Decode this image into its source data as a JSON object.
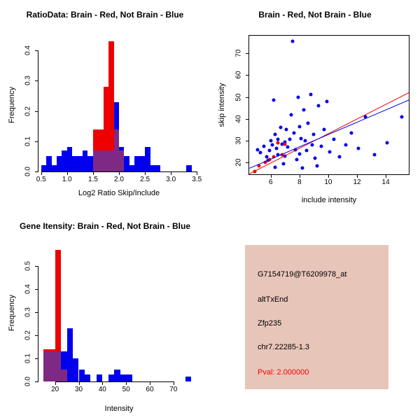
{
  "figure": {
    "bg": "#ffffff",
    "colors": {
      "blue": "#0000EE",
      "red": "#EE0000",
      "overlap": "#7E2A85",
      "axis": "#000000"
    }
  },
  "chart_data": [
    {
      "id": "hist_ratio",
      "type": "bar",
      "subtype": "overlaid-histogram",
      "title": "RatioData: Brain - Red, Not Brain - Blue",
      "xlabel": "Log2 Ratio Skip/Include",
      "ylabel": "Frequency",
      "xlim": [
        0.45,
        3.55
      ],
      "ylim": [
        0,
        0.44
      ],
      "grid": false,
      "xticks": [
        "0.5",
        "1.0",
        "1.5",
        "2.0",
        "2.5",
        "3.0",
        "3.5"
      ],
      "xtick_values": [
        0.5,
        1.0,
        1.5,
        2.0,
        2.5,
        3.0,
        3.5
      ],
      "yticks": [
        "0.0",
        "0.1",
        "0.2",
        "0.3",
        "0.4"
      ],
      "ytick_values": [
        0,
        0.1,
        0.2,
        0.3,
        0.4
      ],
      "bin_width": 0.1,
      "series_legend": [
        {
          "name": "Brain",
          "color_key": "red"
        },
        {
          "name": "Not Brain",
          "color_key": "blue"
        }
      ],
      "bins": [
        {
          "x0": 0.5,
          "blue": 0.02
        },
        {
          "x0": 0.6,
          "blue": 0.05
        },
        {
          "x0": 0.7,
          "blue": 0.02
        },
        {
          "x0": 0.8,
          "blue": 0.05
        },
        {
          "x0": 0.9,
          "blue": 0.07
        },
        {
          "x0": 1.0,
          "blue": 0.08
        },
        {
          "x0": 1.1,
          "blue": 0.05
        },
        {
          "x0": 1.2,
          "blue": 0.05
        },
        {
          "x0": 1.3,
          "blue": 0.07
        },
        {
          "x0": 1.4,
          "blue": 0.05
        },
        {
          "x0": 1.5,
          "blue": 0.07,
          "red": 0.14
        },
        {
          "x0": 1.6,
          "blue": 0.07,
          "red": 0.14
        },
        {
          "x0": 1.7,
          "blue": 0.07,
          "red": 0.28
        },
        {
          "x0": 1.8,
          "blue": 0.07,
          "red": 0.43
        },
        {
          "x0": 1.9,
          "blue": 0.23,
          "red": 0.14
        },
        {
          "x0": 2.0,
          "blue": 0.08,
          "red": 0.07
        },
        {
          "x0": 2.1,
          "blue": 0.05
        },
        {
          "x0": 2.2,
          "blue": 0.02
        },
        {
          "x0": 2.3,
          "blue": 0.05
        },
        {
          "x0": 2.4,
          "blue": 0.05
        },
        {
          "x0": 2.5,
          "blue": 0.08
        },
        {
          "x0": 2.6,
          "blue": 0.02
        },
        {
          "x0": 2.7,
          "blue": 0.02
        },
        {
          "x0": 3.3,
          "blue": 0.02
        }
      ]
    },
    {
      "id": "scatter_intensity",
      "type": "scatter",
      "title": "Brain - Red, Not Brain - Blue",
      "xlabel": "include intensity",
      "ylabel": "skip intensity",
      "xlim": [
        4.5,
        15.7
      ],
      "ylim": [
        14,
        78
      ],
      "grid": false,
      "box": true,
      "xticks": [
        "6",
        "8",
        "10",
        "12",
        "14"
      ],
      "xtick_values": [
        6,
        8,
        10,
        12,
        14
      ],
      "yticks": [
        "20",
        "30",
        "40",
        "50",
        "60",
        "70"
      ],
      "ytick_values": [
        20,
        30,
        40,
        50,
        60,
        70
      ],
      "series": [
        {
          "name": "Not Brain",
          "color_key": "blue",
          "points": [
            [
              5.1,
              26
            ],
            [
              5.3,
              24.5
            ],
            [
              5.5,
              27.5
            ],
            [
              5.7,
              22.5
            ],
            [
              5.8,
              21
            ],
            [
              5.9,
              25.5
            ],
            [
              6.0,
              30
            ],
            [
              6.1,
              28
            ],
            [
              6.2,
              48.5
            ],
            [
              6.3,
              33
            ],
            [
              6.3,
              18
            ],
            [
              6.4,
              26.5
            ],
            [
              6.5,
              30.5
            ],
            [
              6.5,
              23.5
            ],
            [
              6.7,
              36
            ],
            [
              6.8,
              28.5
            ],
            [
              6.9,
              19.5
            ],
            [
              7.0,
              29.5
            ],
            [
              7.0,
              23
            ],
            [
              7.1,
              35
            ],
            [
              7.2,
              27
            ],
            [
              7.3,
              30.5
            ],
            [
              7.4,
              42
            ],
            [
              7.5,
              75.5
            ],
            [
              7.6,
              33.5
            ],
            [
              7.7,
              26
            ],
            [
              7.8,
              21.5
            ],
            [
              7.9,
              50
            ],
            [
              8.0,
              24
            ],
            [
              8.0,
              36.5
            ],
            [
              8.1,
              31
            ],
            [
              8.2,
              17.5
            ],
            [
              8.3,
              44
            ],
            [
              8.4,
              30
            ],
            [
              8.5,
              25.5
            ],
            [
              8.6,
              38
            ],
            [
              8.8,
              51
            ],
            [
              8.9,
              28
            ],
            [
              9.0,
              33
            ],
            [
              9.1,
              22
            ],
            [
              9.2,
              18.5
            ],
            [
              9.3,
              46
            ],
            [
              9.5,
              27.5
            ],
            [
              9.7,
              35
            ],
            [
              9.9,
              48
            ],
            [
              10.1,
              25
            ],
            [
              10.4,
              30.5
            ],
            [
              10.8,
              22.5
            ],
            [
              11.2,
              28
            ],
            [
              11.6,
              33.5
            ],
            [
              12.1,
              26.5
            ],
            [
              12.6,
              41
            ],
            [
              13.2,
              23.5
            ],
            [
              14.1,
              29
            ],
            [
              15.1,
              41
            ]
          ]
        },
        {
          "name": "Brain",
          "color_key": "red",
          "points": [
            [
              4.9,
              16
            ],
            [
              5.2,
              18.5
            ],
            [
              5.6,
              20
            ],
            [
              5.9,
              21.5
            ],
            [
              6.2,
              22.5
            ],
            [
              6.5,
              29
            ],
            [
              6.8,
              23.5
            ],
            [
              7.0,
              28.5
            ]
          ]
        }
      ],
      "lines": [
        {
          "name": "brain-fit-line",
          "color_key": "red",
          "x": [
            4.5,
            15.7
          ],
          "y": [
            15.0,
            52.5
          ]
        },
        {
          "name": "notbrain-fit-line",
          "color_key": "blue",
          "x": [
            4.5,
            15.7
          ],
          "y": [
            17.5,
            49.0
          ]
        }
      ]
    },
    {
      "id": "hist_gene",
      "type": "bar",
      "subtype": "overlaid-histogram",
      "title": "Gene Itensity: Brain - Red, Not Brain - Blue",
      "xlabel": "Intensity",
      "ylabel": "Frequency",
      "xlim": [
        13,
        81
      ],
      "ylim": [
        0,
        0.59
      ],
      "grid": false,
      "xticks": [
        "20",
        "30",
        "40",
        "50",
        "60",
        "70"
      ],
      "xtick_values": [
        20,
        30,
        40,
        50,
        60,
        70
      ],
      "yticks": [
        "0.0",
        "0.1",
        "0.2",
        "0.3",
        "0.4",
        "0.5"
      ],
      "ytick_values": [
        0,
        0.1,
        0.2,
        0.3,
        0.4,
        0.5
      ],
      "bin_width": 2.5,
      "series_legend": [
        {
          "name": "Brain",
          "color_key": "red"
        },
        {
          "name": "Not Brain",
          "color_key": "blue"
        }
      ],
      "bins": [
        {
          "x0": 15,
          "blue": 0.13,
          "red": 0.14
        },
        {
          "x0": 17.5,
          "blue": 0.13,
          "red": 0.14
        },
        {
          "x0": 20,
          "blue": 0.13,
          "red": 0.57
        },
        {
          "x0": 22.5,
          "blue": 0.13,
          "red": 0.05
        },
        {
          "x0": 25,
          "blue": 0.23
        },
        {
          "x0": 27.5,
          "blue": 0.1
        },
        {
          "x0": 30,
          "blue": 0.05
        },
        {
          "x0": 32.5,
          "blue": 0.03
        },
        {
          "x0": 37.5,
          "blue": 0.03
        },
        {
          "x0": 42.5,
          "blue": 0.03
        },
        {
          "x0": 45,
          "blue": 0.05
        },
        {
          "x0": 47.5,
          "blue": 0.03
        },
        {
          "x0": 50,
          "blue": 0.03
        },
        {
          "x0": 75,
          "blue": 0.02
        }
      ]
    }
  ],
  "info_box": {
    "bg": "#E8C5B9",
    "lines": [
      {
        "text": "G7154719@T6209978_at",
        "color": "#000000"
      },
      {
        "text": "altTxEnd",
        "color": "#000000"
      },
      {
        "text": "Zfp235",
        "color": "#000000"
      },
      {
        "text": "chr7.22285-1.3",
        "color": "#000000"
      },
      {
        "text": "Pval: 2.000000",
        "color": "#FF0000"
      }
    ]
  }
}
